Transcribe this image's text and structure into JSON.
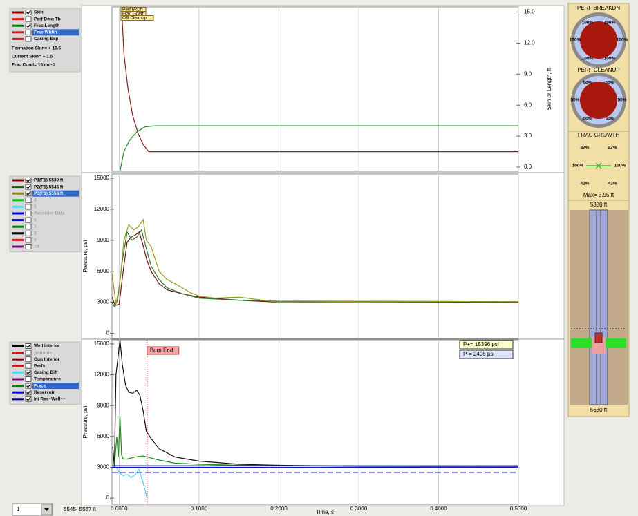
{
  "time_axis": {
    "label": "Time, s",
    "xlim": [
      -0.009,
      0.5
    ],
    "xticks": [
      {
        "value": 0,
        "label": "0.0000"
      },
      {
        "value": 0.1,
        "label": "0.1000"
      },
      {
        "value": 0.2,
        "label": "0.2000"
      },
      {
        "value": 0.3,
        "label": "0.3000"
      },
      {
        "value": 0.4,
        "label": "0.4000"
      },
      {
        "value": 0.5,
        "label": "0.5000"
      }
    ]
  },
  "top_chart": {
    "ylabel": "Skin or Length, ft",
    "ylim": [
      -0.4,
      15.5
    ],
    "yticks": [
      {
        "value": 15,
        "label": "15.0"
      },
      {
        "value": 12,
        "label": "12.0"
      },
      {
        "value": 9,
        "label": "9.0"
      },
      {
        "value": 6,
        "label": "6.0"
      },
      {
        "value": 3,
        "label": "3.0"
      },
      {
        "value": 0,
        "label": "0.0"
      }
    ],
    "legend": [
      {
        "name": "Skin",
        "color": "#800000",
        "checked": true
      },
      {
        "name": "Perf Dmg Th",
        "color": "#e01010",
        "checked": false
      },
      {
        "name": "Frac Length",
        "color": "#008000",
        "checked": true
      },
      {
        "name": "Frac Width",
        "color": "#e01010",
        "checked": false,
        "selected": true
      },
      {
        "name": "Casing Exp",
        "color": "#e01010",
        "checked": false
      }
    ],
    "notes": [
      "Formation Skin= + 16.5",
      "Current Skin= + 1.5",
      "Frac Cond=   15 md-ft"
    ],
    "annotations": [
      "Perf BkDn",
      "Frac  Grwth",
      "OB Cleanup"
    ],
    "series": [
      {
        "color": "#9a1a1a",
        "x": [
          0.003,
          0.006,
          0.011,
          0.017,
          0.024,
          0.03,
          0.037,
          0.5
        ],
        "values": [
          15.5,
          11,
          7.6,
          5,
          3.2,
          2.2,
          1.5,
          1.5
        ]
      },
      {
        "color": "#1f8a1f",
        "x": [
          0.001,
          0.006,
          0.013,
          0.022,
          0.032,
          0.045,
          0.5
        ],
        "values": [
          -0.4,
          1.5,
          2.6,
          3.4,
          3.9,
          4.0,
          4.0
        ]
      }
    ]
  },
  "middle_chart": {
    "ylabel": "Pressure, psi",
    "ylim": [
      -500,
      15400
    ],
    "yticks": [
      15000,
      12000,
      9000,
      6000,
      3000,
      0
    ],
    "legend": [
      {
        "name": "P1(F1) 5530 ft",
        "color": "#800000",
        "checked": true
      },
      {
        "name": "P2(F1) 5545 ft",
        "color": "#006400",
        "checked": true
      },
      {
        "name": "P3(F1) 5558 ft",
        "color": "#8b8b00",
        "checked": true,
        "selected": true
      },
      {
        "name": "4",
        "color": "#00c000",
        "checked": false,
        "disabled": true
      },
      {
        "name": "5",
        "color": "#40e0f0",
        "checked": false,
        "disabled": true
      },
      {
        "name": "Recorder Data",
        "color": "#0000e0",
        "checked": false,
        "disabled": true
      },
      {
        "name": "6",
        "color": "#0000e0",
        "checked": false,
        "disabled": true
      },
      {
        "name": "7",
        "color": "#008000",
        "checked": false,
        "disabled": true
      },
      {
        "name": "8",
        "color": "#000000",
        "checked": false,
        "disabled": true
      },
      {
        "name": "9",
        "color": "#e01010",
        "checked": false,
        "disabled": true
      },
      {
        "name": "10",
        "color": "#800080",
        "checked": false,
        "disabled": true
      }
    ],
    "series": [
      {
        "color": "#7a1010",
        "x": [
          -0.009,
          -0.005,
          0,
          0.005,
          0.01,
          0.015,
          0.02,
          0.025,
          0.03,
          0.035,
          0.04,
          0.05,
          0.06,
          0.08,
          0.1,
          0.15,
          0.2,
          0.3,
          0.5
        ],
        "values": [
          3500,
          2700,
          2800,
          6000,
          8800,
          9300,
          9500,
          9800,
          8500,
          7000,
          6000,
          4800,
          4200,
          3800,
          3500,
          3200,
          3000,
          3050,
          3000
        ]
      },
      {
        "color": "#2a7a2a",
        "x": [
          -0.009,
          -0.006,
          -0.002,
          0.004,
          0.01,
          0.016,
          0.022,
          0.028,
          0.034,
          0.04,
          0.05,
          0.06,
          0.08,
          0.1,
          0.15,
          0.2,
          0.3,
          0.5
        ],
        "values": [
          3000,
          2600,
          3200,
          7000,
          9800,
          9000,
          9300,
          10000,
          8200,
          6500,
          5200,
          4400,
          3800,
          3400,
          3200,
          3100,
          3100,
          3050
        ]
      },
      {
        "color": "#9a9a20",
        "x": [
          -0.009,
          -0.004,
          0.001,
          0.006,
          0.012,
          0.018,
          0.024,
          0.03,
          0.034,
          0.04,
          0.045,
          0.05,
          0.06,
          0.07,
          0.09,
          0.1,
          0.12,
          0.15,
          0.2,
          0.3,
          0.5
        ],
        "values": [
          5800,
          2800,
          5000,
          9000,
          10500,
          10000,
          10300,
          11000,
          9000,
          8400,
          7200,
          6000,
          5200,
          4800,
          3900,
          3600,
          3400,
          3500,
          3000,
          3100,
          3050
        ]
      }
    ]
  },
  "bottom_chart": {
    "ylabel": "Pressure, psi",
    "ylim": [
      -600,
      15400
    ],
    "yticks": [
      15000,
      12000,
      9000,
      6000,
      3000,
      0
    ],
    "legend": [
      {
        "name": "Well Interior",
        "color": "#000000",
        "checked": true
      },
      {
        "name": "Annulus",
        "color": "#e01010",
        "checked": false,
        "disabled": true
      },
      {
        "name": "Gun Interior",
        "color": "#800000",
        "checked": false
      },
      {
        "name": "Perfs",
        "color": "#e01010",
        "checked": false
      },
      {
        "name": "Casing Diff",
        "color": "#40e0f0",
        "checked": true
      },
      {
        "name": "Temperature",
        "color": "#800080",
        "checked": false
      },
      {
        "name": "Fracs",
        "color": "#008000",
        "checked": true,
        "selected": true
      },
      {
        "name": "Reservoir",
        "color": "#0000e0",
        "checked": true
      },
      {
        "name": "Ini Res~Well~~",
        "color": "#000080",
        "checked": true
      }
    ],
    "p_plus": "P+=  15396 psi",
    "p_minus": {
      "value": 2495,
      "label": "P-=   2495 psi"
    },
    "burn_end": {
      "value": 0.035,
      "label": "Burn  End"
    },
    "series": [
      {
        "color": "#101010",
        "x": [
          -0.008,
          -0.006,
          -0.004,
          0.001,
          0.004,
          0.008,
          0.012,
          0.017,
          0.022,
          0.026,
          0.03,
          0.034,
          0.04,
          0.05,
          0.07,
          0.1,
          0.15,
          0.2,
          0.3,
          0.5
        ],
        "values": [
          5000,
          3000,
          12000,
          15400,
          13000,
          11000,
          10300,
          10200,
          10500,
          10000,
          8500,
          6500,
          5800,
          4800,
          4000,
          3600,
          3300,
          3200,
          3100,
          3050
        ]
      },
      {
        "color": "#40d8f0",
        "x": [
          -0.003,
          0,
          0.005,
          0.01,
          0.015,
          0.02,
          0.025,
          0.03,
          0.035
        ],
        "values": [
          3000,
          2500,
          2200,
          2300,
          2000,
          2300,
          2800,
          1500,
          0
        ]
      },
      {
        "color": "#1a901a",
        "x": [
          -0.006,
          -0.003,
          -0.001,
          0.001,
          0.003,
          0.005,
          0.01,
          0.02,
          0.03,
          0.05,
          0.07,
          0.1,
          0.15,
          0.3,
          0.5
        ],
        "values": [
          3000,
          6000,
          4000,
          8000,
          4200,
          3800,
          3800,
          4000,
          4100,
          3700,
          3400,
          3300,
          3200,
          3100,
          3050
        ]
      },
      {
        "color": "#1010d0",
        "x": [
          -0.009,
          0.5
        ],
        "values": [
          3000,
          3000
        ]
      },
      {
        "color": "#000070",
        "x": [
          -0.009,
          0.5
        ],
        "values": [
          3150,
          3150
        ]
      }
    ]
  },
  "right_panel": {
    "perf_breakdown": {
      "title": "PERF BREAKDN",
      "labels": [
        "100%",
        "100%",
        "100%",
        "100%",
        "100%",
        "100%"
      ]
    },
    "perf_cleanup": {
      "title": "PERF CLEANUP",
      "labels": [
        "50%",
        "50%",
        "50%",
        "50%",
        "50%",
        "50%"
      ]
    },
    "frac_growth": {
      "title": "FRAC GROWTH",
      "upper": [
        "42%",
        "42%"
      ],
      "sides": [
        "100%",
        "100%"
      ],
      "lower": [
        "42%",
        "42%"
      ],
      "max": "Max= 3.95 ft"
    },
    "top_depth": "5380 ft",
    "bottom_depth": "5630 ft"
  },
  "status_bar": {
    "selector": "1",
    "depth_range": "5545- 5557 ft"
  }
}
